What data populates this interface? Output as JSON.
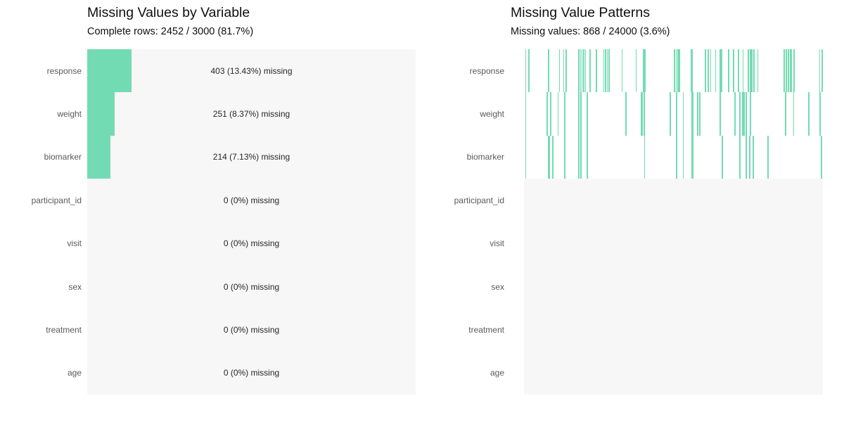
{
  "colors": {
    "accent_green": "#73dbb3",
    "plot_bg": "#f7f7f7",
    "strip_bg": "#ffffff",
    "label_gray": "#5a5a5a",
    "title_color": "#0f0f0f",
    "annotation_color": "#262626"
  },
  "left_panel": {
    "title": "Missing Values by Variable",
    "subtitle": "Complete rows: 2452 / 3000 (81.7%)"
  },
  "right_panel": {
    "title": "Missing Value Patterns",
    "subtitle": "Missing values: 868 / 24000 (3.6%)"
  },
  "chart_data": [
    {
      "type": "bar",
      "orientation": "horizontal",
      "title": "Missing Values by Variable",
      "subtitle": "Complete rows: 2452 / 3000 (81.7%)",
      "categories": [
        "response",
        "weight",
        "biomarker",
        "participant_id",
        "visit",
        "sex",
        "treatment",
        "age"
      ],
      "values": [
        403,
        251,
        214,
        0,
        0,
        0,
        0,
        0
      ],
      "percent_missing": [
        13.43,
        8.37,
        7.13,
        0,
        0,
        0,
        0,
        0
      ],
      "bar_labels": [
        "403 (13.43%) missing",
        "251 (8.37%) missing",
        "214 (7.13%) missing",
        "0 (0%) missing",
        "0 (0%) missing",
        "0 (0%) missing",
        "0 (0%) missing",
        "0 (0%) missing"
      ],
      "total_rows": 3000,
      "complete_rows": 2452,
      "complete_pct": 81.7,
      "xlim": [
        0,
        3000
      ],
      "grid": false,
      "legend": "none"
    },
    {
      "type": "heatmap",
      "title": "Missing Value Patterns",
      "subtitle": "Missing values: 868 / 24000 (3.6%)",
      "categories": [
        "response",
        "weight",
        "biomarker",
        "participant_id",
        "visit",
        "sex",
        "treatment",
        "age"
      ],
      "n_data_rows": 3000,
      "missing_cells": 868,
      "total_cells": 24000,
      "missing_pct": 3.6,
      "rows_with_missing": [
        "response",
        "weight",
        "biomarker"
      ],
      "ticks": {
        "response": {
          "x": [
            0.006,
            0.016,
            0.082,
            0.119,
            0.133,
            0.141,
            0.184,
            0.189,
            0.194,
            0.2,
            0.206,
            0.221,
            0.243,
            0.267,
            0.273,
            0.279,
            0.285,
            0.328,
            0.375,
            0.402,
            0.504,
            0.509,
            0.515,
            0.52,
            0.561,
            0.607,
            0.617,
            0.625,
            0.641,
            0.659,
            0.685,
            0.701,
            0.717,
            0.733,
            0.751,
            0.757,
            0.763,
            0.769,
            0.782,
            0.87,
            0.877,
            0.885,
            0.893,
            0.903,
            0.989,
            0.997
          ],
          "wide": [
            0.402,
            0.561,
            0.659,
            0.893
          ]
        },
        "weight": {
          "x": [
            0.006,
            0.078,
            0.089,
            0.114,
            0.137,
            0.184,
            0.19,
            0.212,
            0.341,
            0.394,
            0.402,
            0.49,
            0.51,
            0.533,
            0.563,
            0.581,
            0.588,
            0.657,
            0.706,
            0.722,
            0.732,
            0.737,
            0.744,
            0.757,
            0.875,
            0.902,
            0.953,
            0.99
          ],
          "wide": [
            0.394,
            0.563
          ]
        },
        "biomarker": {
          "x": [
            0.006,
            0.082,
            0.085,
            0.096,
            0.137,
            0.184,
            0.19,
            0.212,
            0.404,
            0.51,
            0.533,
            0.563,
            0.663,
            0.722,
            0.744,
            0.755,
            0.767,
            0.816,
            0.995
          ],
          "wide": [
            0.563
          ]
        }
      }
    }
  ]
}
